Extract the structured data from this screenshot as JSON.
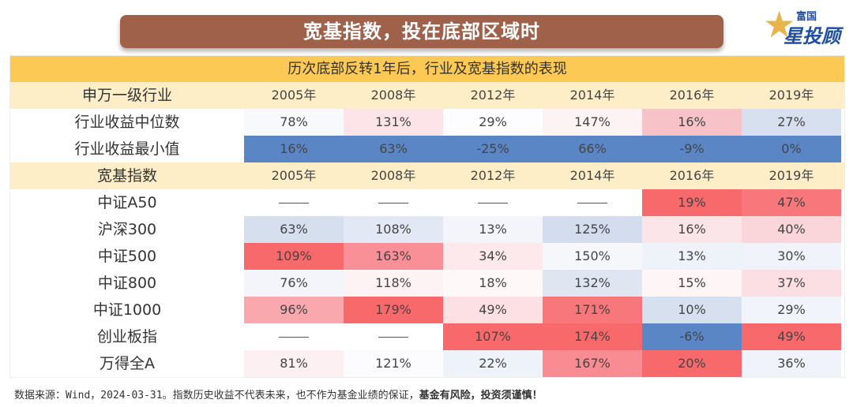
{
  "title": "宽基指数，投在底部区域时",
  "logo": {
    "line1": "富国",
    "line2": "星投顾"
  },
  "table": {
    "caption": "历次底部反转1年后，行业及宽基指数的表现",
    "years": [
      "2005年",
      "2008年",
      "2012年",
      "2014年",
      "2016年",
      "2019年"
    ],
    "industry_header": "申万一级行业",
    "industry_rows": [
      {
        "label": "行业收益中位数",
        "values": [
          "78%",
          "131%",
          "29%",
          "147%",
          "16%",
          "27%"
        ],
        "colors": [
          "#f8f9fc",
          "#fce4e8",
          "#fdfdff",
          "#fdf3f4",
          "#f8c3c8",
          "#d6e0ef"
        ]
      },
      {
        "label": "行业收益最小值",
        "values": [
          "16%",
          "63%",
          "-25%",
          "66%",
          "-9%",
          "0%"
        ],
        "colors": [
          "#5b86c5",
          "#5b86c5",
          "#5b86c5",
          "#5b86c5",
          "#5b86c5",
          "#5b86c5"
        ]
      }
    ],
    "index_header": "宽基指数",
    "index_rows": [
      {
        "label": "中证A50",
        "values": [
          "——",
          "——",
          "——",
          "——",
          "19%",
          "47%"
        ],
        "colors": [
          "#fff",
          "#fff",
          "#fff",
          "#fff",
          "#f8696b",
          "#f7777b"
        ]
      },
      {
        "label": "沪深300",
        "values": [
          "63%",
          "108%",
          "13%",
          "125%",
          "16%",
          "40%"
        ],
        "colors": [
          "#d5dfee",
          "#e2e9f4",
          "#f3f5fa",
          "#d3ddee",
          "#fbe5e8",
          "#fad6da"
        ]
      },
      {
        "label": "中证500",
        "values": [
          "109%",
          "163%",
          "34%",
          "150%",
          "13%",
          "30%"
        ],
        "colors": [
          "#f8696b",
          "#f99097",
          "#fde8eb",
          "#f6f7fb",
          "#eef2f9",
          "#f0f3f9"
        ]
      },
      {
        "label": "中证800",
        "values": [
          "76%",
          "118%",
          "18%",
          "132%",
          "15%",
          "37%"
        ],
        "colors": [
          "#f3f5fa",
          "#fdf3f4",
          "#fef8f8",
          "#dfe6f2",
          "#fdf5f6",
          "#fbdfe2"
        ]
      },
      {
        "label": "中证1000",
        "values": [
          "96%",
          "179%",
          "49%",
          "171%",
          "10%",
          "29%"
        ],
        "colors": [
          "#f9a9ae",
          "#f8696b",
          "#fde0e3",
          "#f8777b",
          "#d6e0ef",
          "#f1f4fa"
        ]
      },
      {
        "label": "创业板指",
        "values": [
          "——",
          "——",
          "107%",
          "174%",
          "-6%",
          "49%"
        ],
        "colors": [
          "#fff",
          "#fff",
          "#f8696b",
          "#f8696b",
          "#5b86c5",
          "#f8696b"
        ]
      },
      {
        "label": "万得全A",
        "values": [
          "81%",
          "121%",
          "22%",
          "167%",
          "20%",
          "36%"
        ],
        "colors": [
          "#fdf0f2",
          "#fcfcff",
          "#eef2f9",
          "#f88c92",
          "#f8696b",
          "#f0f3f9"
        ]
      }
    ]
  },
  "footer": {
    "note": "数据来源：Wind，2024-03-31。指数历史收益不代表未来，也不作为基金业绩的保证，",
    "bold": "基金有风险，投资须谨慎！"
  }
}
